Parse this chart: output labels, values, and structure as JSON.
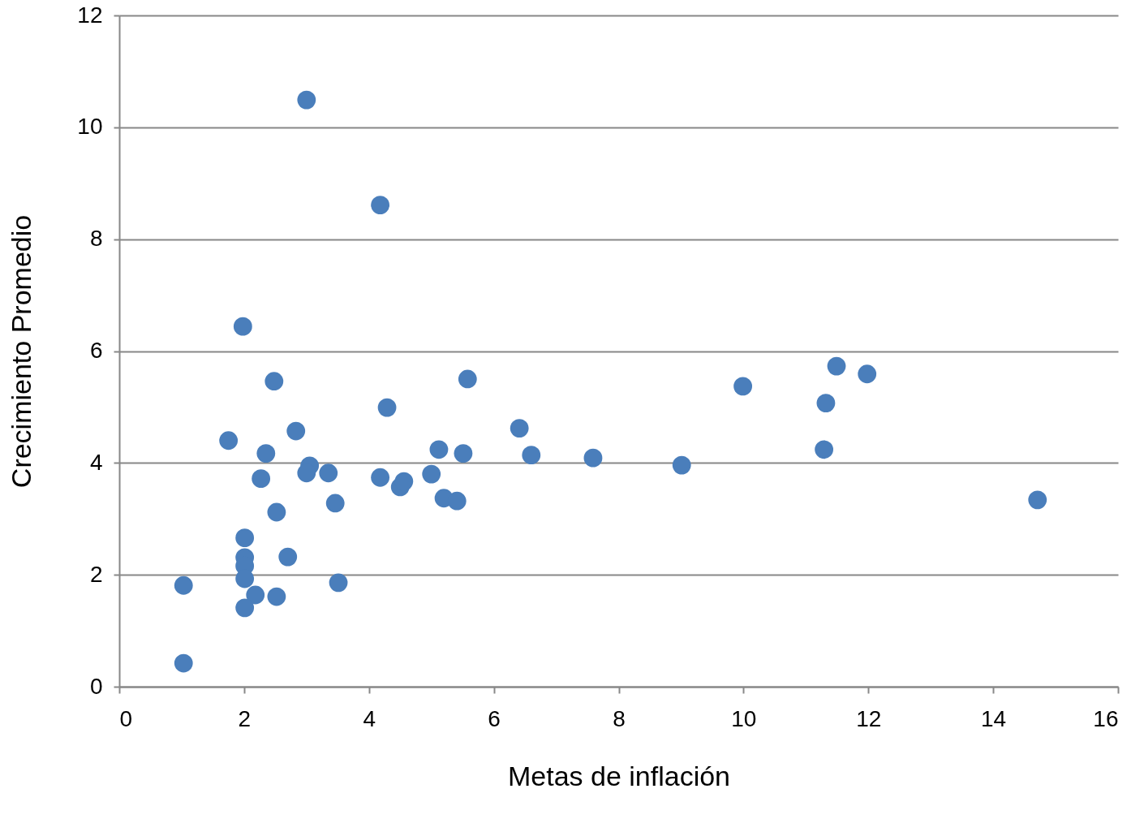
{
  "chart_data": {
    "type": "scatter",
    "xlabel": "Metas de inflación",
    "ylabel": "Crecimiento  Promedio",
    "x": [
      3.0,
      4.18,
      1.98,
      2.48,
      5.58,
      4.29,
      6.41,
      2.83,
      1.75,
      5.12,
      2.35,
      5.51,
      6.6,
      7.59,
      9.01,
      3.05,
      3.0,
      3.35,
      5.0,
      4.18,
      2.27,
      4.5,
      4.56,
      5.2,
      5.41,
      3.46,
      2.52,
      2.01,
      2.7,
      2.01,
      2.01,
      2.01,
      2.18,
      2.52,
      3.51,
      1.03,
      2.01,
      1.03,
      9.99,
      11.49,
      11.98,
      11.32,
      11.29,
      14.71
    ],
    "values": [
      10.49,
      8.61,
      6.44,
      5.46,
      5.5,
      4.99,
      4.62,
      4.57,
      4.4,
      4.24,
      4.17,
      4.17,
      4.14,
      4.09,
      3.96,
      3.95,
      3.82,
      3.82,
      3.8,
      3.74,
      3.72,
      3.57,
      3.67,
      3.37,
      3.32,
      3.28,
      3.12,
      2.66,
      2.32,
      2.31,
      2.16,
      1.93,
      1.64,
      1.61,
      1.86,
      1.81,
      1.41,
      0.42,
      5.37,
      5.73,
      5.59,
      5.07,
      4.24,
      3.34
    ],
    "color": "#4a7ebb",
    "marker": "circle",
    "grid": "y",
    "xlim": [
      0,
      16
    ],
    "xticks": [
      0,
      2,
      4,
      6,
      8,
      10,
      12,
      14,
      16
    ],
    "ylim": [
      0,
      12
    ],
    "yticks": [
      0,
      2,
      4,
      6,
      8,
      10,
      12
    ]
  }
}
